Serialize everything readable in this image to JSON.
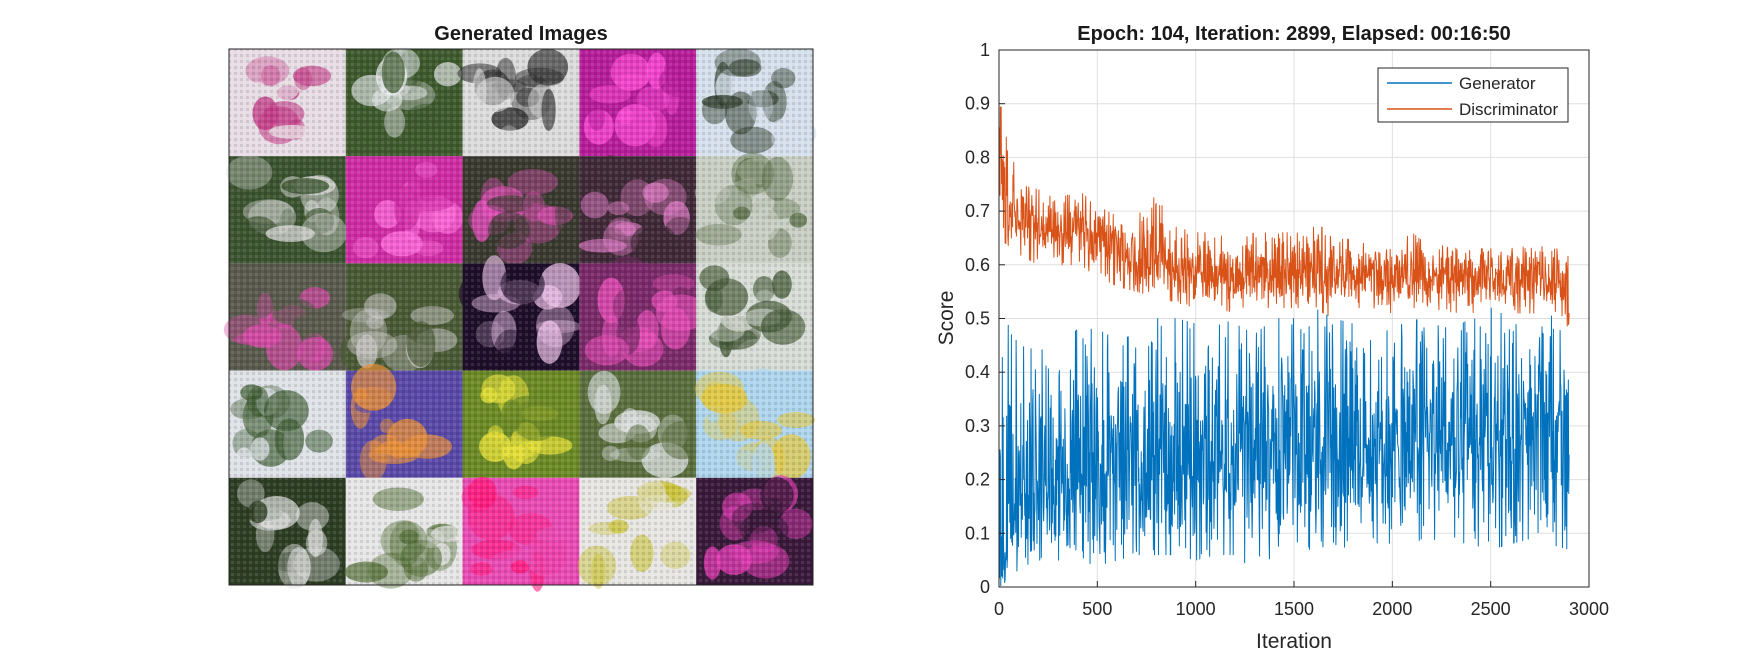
{
  "figure": {
    "left_panel": {
      "title": "Generated Images",
      "grid_rows": 5,
      "grid_cols": 5,
      "tiles": [
        {
          "base": "#e8dde4",
          "accent": "#c23a86",
          "kind": "light-pink"
        },
        {
          "base": "#3e5a2e",
          "accent": "#e9ecef",
          "kind": "green"
        },
        {
          "base": "#dcdcdc",
          "accent": "#2a2a2a",
          "kind": "white-dark"
        },
        {
          "base": "#b61d9a",
          "accent": "#ff4fd6",
          "kind": "magenta"
        },
        {
          "base": "#d6e0ec",
          "accent": "#2e3c2a",
          "kind": "white-blue"
        },
        {
          "base": "#3c5430",
          "accent": "#d9d9d9",
          "kind": "green-white"
        },
        {
          "base": "#ce2ca4",
          "accent": "#ff6fdc",
          "kind": "magenta"
        },
        {
          "base": "#3a3a30",
          "accent": "#e24fb8",
          "kind": "dark-pink"
        },
        {
          "base": "#402a38",
          "accent": "#e07cc6",
          "kind": "dark-pink"
        },
        {
          "base": "#c9cfc4",
          "accent": "#5a6e48",
          "kind": "white-green"
        },
        {
          "base": "#5a5a4e",
          "accent": "#d84aa8",
          "kind": "grey-pink"
        },
        {
          "base": "#4a5a36",
          "accent": "#c8c6c4",
          "kind": "green-grey"
        },
        {
          "base": "#1f0f2a",
          "accent": "#f1c5ee",
          "kind": "dark-violet"
        },
        {
          "base": "#7b2a6a",
          "accent": "#e84fb8",
          "kind": "pink"
        },
        {
          "base": "#d8dcd6",
          "accent": "#3e5430",
          "kind": "white-green"
        },
        {
          "base": "#dfe3e8",
          "accent": "#3c5a30",
          "kind": "white-green"
        },
        {
          "base": "#5a4aa8",
          "accent": "#e8903a",
          "kind": "blue-orange"
        },
        {
          "base": "#6c8a26",
          "accent": "#e8e23a",
          "kind": "yellow-green"
        },
        {
          "base": "#5a6e3e",
          "accent": "#dfe2e4",
          "kind": "green-white"
        },
        {
          "base": "#b0d6ee",
          "accent": "#e6c83a",
          "kind": "light-blue"
        },
        {
          "base": "#2e3e24",
          "accent": "#e6e6e6",
          "kind": "dark-green"
        },
        {
          "base": "#e6e6e6",
          "accent": "#4e6a30",
          "kind": "white-green"
        },
        {
          "base": "#e94cb4",
          "accent": "#ff1a7a",
          "kind": "pink"
        },
        {
          "base": "#e8e6e2",
          "accent": "#c8c030",
          "kind": "white-yellow"
        },
        {
          "base": "#3a1a3a",
          "accent": "#e23cb4",
          "kind": "dark-magenta"
        }
      ]
    },
    "right_panel": {
      "title": "Epoch: 104, Iteration: 2899, Elapsed: 00:16:50",
      "xlabel": "Iteration",
      "ylabel": "Score",
      "legend": {
        "position": "top-right",
        "entries": [
          "Generator",
          "Discriminator"
        ]
      }
    }
  },
  "chart_data": {
    "type": "line",
    "title": "Epoch: 104, Iteration: 2899, Elapsed: 00:16:50",
    "xlabel": "Iteration",
    "ylabel": "Score",
    "xlim": [
      0,
      3000
    ],
    "ylim": [
      0,
      1
    ],
    "xticks": [
      0,
      500,
      1000,
      1500,
      2000,
      2500,
      3000
    ],
    "yticks": [
      0,
      0.1,
      0.2,
      0.3,
      0.4,
      0.5,
      0.6,
      0.7,
      0.8,
      0.9,
      1
    ],
    "xtick_labels": [
      "0",
      "500",
      "1000",
      "1500",
      "2000",
      "2500",
      "3000"
    ],
    "ytick_labels": [
      "0",
      "0.1",
      "0.2",
      "0.3",
      "0.4",
      "0.5",
      "0.6",
      "0.7",
      "0.8",
      "0.9",
      "1"
    ],
    "grid": true,
    "legend_position": "top-right",
    "series": [
      {
        "name": "Generator",
        "color": "#0072BD",
        "x": [
          1,
          100,
          200,
          300,
          400,
          500,
          600,
          700,
          800,
          900,
          1000,
          1100,
          1200,
          1300,
          1400,
          1500,
          1600,
          1700,
          1800,
          1900,
          2000,
          2100,
          2200,
          2300,
          2400,
          2500,
          2600,
          2700,
          2800,
          2899
        ],
        "mean": [
          0.02,
          0.17,
          0.19,
          0.2,
          0.21,
          0.22,
          0.23,
          0.23,
          0.24,
          0.24,
          0.25,
          0.25,
          0.26,
          0.27,
          0.28,
          0.28,
          0.28,
          0.27,
          0.27,
          0.27,
          0.27,
          0.28,
          0.28,
          0.28,
          0.28,
          0.28,
          0.28,
          0.28,
          0.28,
          0.28
        ],
        "min": [
          0.0,
          0.03,
          0.05,
          0.05,
          0.05,
          0.04,
          0.05,
          0.06,
          0.06,
          0.06,
          0.05,
          0.06,
          0.06,
          0.03,
          0.06,
          0.07,
          0.07,
          0.08,
          0.07,
          0.08,
          0.07,
          0.08,
          0.09,
          0.08,
          0.08,
          0.07,
          0.08,
          0.09,
          0.08,
          0.07
        ],
        "max": [
          0.52,
          0.45,
          0.44,
          0.45,
          0.48,
          0.48,
          0.46,
          0.47,
          0.5,
          0.5,
          0.49,
          0.5,
          0.49,
          0.47,
          0.5,
          0.5,
          0.52,
          0.5,
          0.49,
          0.47,
          0.48,
          0.5,
          0.49,
          0.48,
          0.5,
          0.52,
          0.5,
          0.5,
          0.51,
          0.45
        ]
      },
      {
        "name": "Discriminator",
        "color": "#D95319",
        "x": [
          1,
          100,
          200,
          300,
          400,
          500,
          600,
          700,
          800,
          900,
          1000,
          1100,
          1200,
          1300,
          1400,
          1500,
          1600,
          1700,
          1800,
          1900,
          2000,
          2100,
          2200,
          2300,
          2400,
          2500,
          2600,
          2700,
          2800,
          2899
        ],
        "mean": [
          0.78,
          0.68,
          0.67,
          0.66,
          0.68,
          0.65,
          0.63,
          0.62,
          0.61,
          0.6,
          0.59,
          0.58,
          0.58,
          0.58,
          0.58,
          0.59,
          0.59,
          0.58,
          0.58,
          0.58,
          0.58,
          0.58,
          0.58,
          0.58,
          0.58,
          0.57,
          0.57,
          0.57,
          0.57,
          0.57
        ],
        "min": [
          0.65,
          0.62,
          0.6,
          0.6,
          0.6,
          0.58,
          0.56,
          0.55,
          0.54,
          0.53,
          0.52,
          0.52,
          0.51,
          0.52,
          0.52,
          0.52,
          0.52,
          0.5,
          0.52,
          0.52,
          0.51,
          0.52,
          0.52,
          0.51,
          0.51,
          0.52,
          0.51,
          0.51,
          0.51,
          0.48
        ],
        "max": [
          0.91,
          0.75,
          0.74,
          0.72,
          0.74,
          0.71,
          0.69,
          0.69,
          0.73,
          0.67,
          0.66,
          0.66,
          0.64,
          0.66,
          0.66,
          0.66,
          0.67,
          0.67,
          0.64,
          0.64,
          0.63,
          0.66,
          0.63,
          0.64,
          0.63,
          0.63,
          0.63,
          0.64,
          0.63,
          0.63
        ]
      }
    ]
  }
}
